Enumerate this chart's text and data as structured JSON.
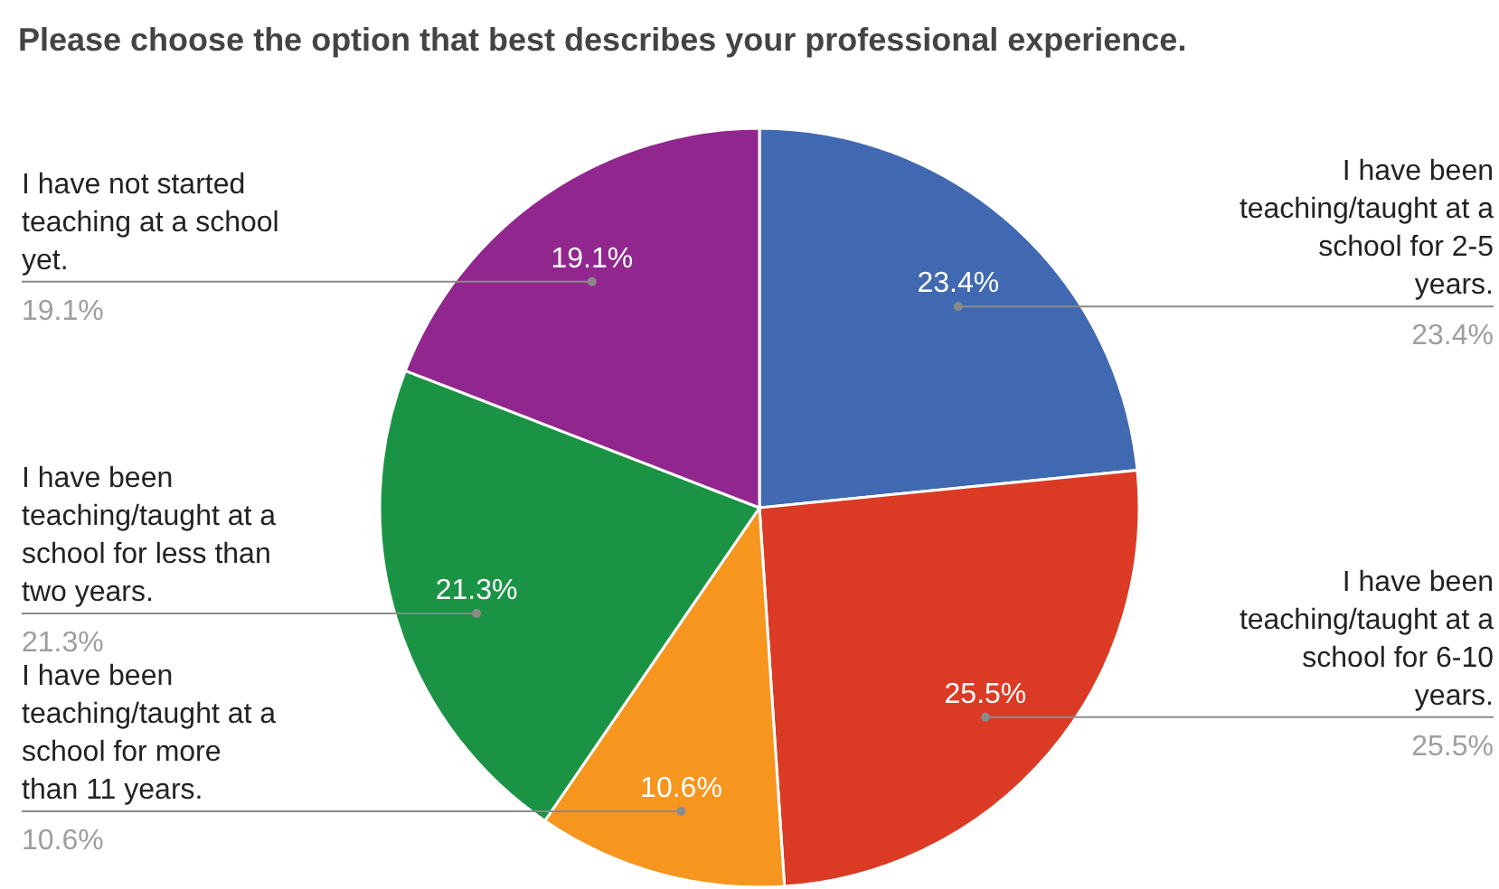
{
  "chart_data": {
    "type": "pie",
    "title": "Please choose the option that best describes your professional experience.",
    "categories": [
      "I have been teaching/taught at a school for 2-5 years.",
      "I have been teaching/taught at a school for 6-10 years.",
      "I have been teaching/taught at a school for more than 11 years.",
      "I have been teaching/taught at a school for less than two years.",
      "I have not started teaching at a school yet."
    ],
    "values": [
      23.4,
      25.5,
      10.6,
      21.3,
      19.1
    ],
    "value_labels": [
      "23.4%",
      "25.5%",
      "10.6%",
      "21.3%",
      "19.1%"
    ],
    "colors": [
      "#4169b1",
      "#db3a24",
      "#f6961f",
      "#1a9444",
      "#91278e"
    ]
  }
}
